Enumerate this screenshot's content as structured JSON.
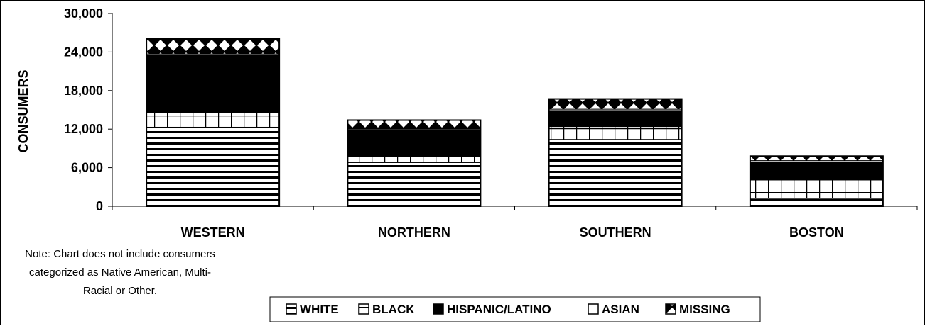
{
  "chart_data": {
    "type": "bar",
    "stacked": true,
    "title": "",
    "xlabel": "",
    "ylabel": "CONSUMERS",
    "ylim": [
      0,
      30000
    ],
    "y_ticks": [
      "0",
      "6,000",
      "12,000",
      "18,000",
      "24,000",
      "30,000"
    ],
    "y_tick_values": [
      0,
      6000,
      12000,
      18000,
      24000,
      30000
    ],
    "categories": [
      "WESTERN",
      "NORTHERN",
      "SOUTHERN",
      "BOSTON"
    ],
    "series": [
      {
        "name": "WHITE",
        "values": [
          12300,
          6800,
          10400,
          1200
        ]
      },
      {
        "name": "BLACK",
        "values": [
          2300,
          900,
          2000,
          2900
        ]
      },
      {
        "name": "HISPANIC/LATINO",
        "values": [
          8900,
          4100,
          2500,
          2800
        ]
      },
      {
        "name": "ASIAN",
        "values": [
          200,
          200,
          200,
          200
        ]
      },
      {
        "name": "MISSING",
        "values": [
          2400,
          1400,
          1600,
          700
        ]
      }
    ],
    "legend_position": "bottom",
    "grid": false,
    "note": "Note: Chart does not include consumers categorized as Native American, Multi-Racial or Other."
  },
  "note_lines": [
    "Note: Chart does not include consumers",
    "categorized as Native American, Multi-",
    "Racial or Other."
  ]
}
